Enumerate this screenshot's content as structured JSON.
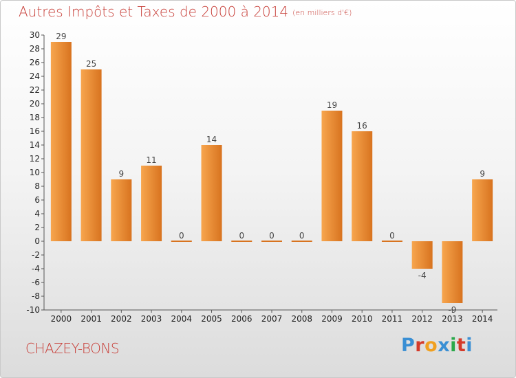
{
  "header": {
    "title": "Autres Impôts et Taxes de 2000 à 2014",
    "subtitle": "(en milliers d'€)"
  },
  "footer": {
    "commune": "CHAZEY-BONS",
    "brand": "Proxiti"
  },
  "colors": {
    "bar_light": "#f7a64e",
    "bar_dark": "#d8731f",
    "title": "#c8403a",
    "brand_letters": [
      "#3a8fd4",
      "#d43a2a",
      "#f0a020",
      "#3a8fd4",
      "#2aa84a",
      "#d43a2a",
      "#3a8fd4"
    ]
  },
  "chart_data": {
    "type": "bar",
    "categories": [
      "2000",
      "2001",
      "2002",
      "2003",
      "2004",
      "2005",
      "2006",
      "2007",
      "2008",
      "2009",
      "2010",
      "2011",
      "2012",
      "2013",
      "2014"
    ],
    "values": [
      29,
      25,
      9,
      11,
      0,
      14,
      0,
      0,
      0,
      19,
      16,
      0,
      -4,
      -9,
      9
    ],
    "ylim": [
      -10,
      30
    ],
    "ytick_step": 2,
    "grid": false,
    "legend": "none"
  }
}
